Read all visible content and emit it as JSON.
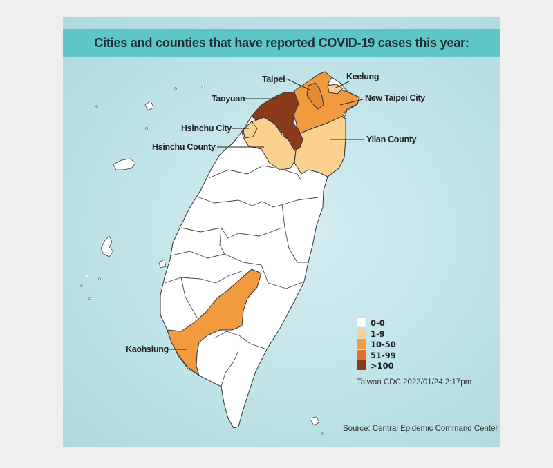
{
  "title": "Cities and counties that have reported COVID-19 cases this year:",
  "labels": {
    "taipei": "Taipei",
    "keelung": "Keelung",
    "new_taipei": "New Taipei City",
    "taoyuan": "Taoyuan",
    "hsinchu_city": "Hsinchu City",
    "hsinchu_county": "Hsinchu County",
    "yilan": "Yilan County",
    "kaohsiung": "Kaohsiung"
  },
  "legend": [
    {
      "label": "0-0",
      "color": "#ffffff"
    },
    {
      "label": "1-9",
      "color": "#fcd08e"
    },
    {
      "label": "10-50",
      "color": "#f19a3e"
    },
    {
      "label": "51-99",
      "color": "#e0722e"
    },
    {
      "label": ">100",
      "color": "#8b3a1c"
    }
  ],
  "timestamp": "Taiwan CDC 2022/01/24  2:17pm",
  "source": "Source: Central Epidemic Command Center",
  "region_categories": {
    "taoyuan": ">100",
    "new_taipei": "10-50",
    "taipei": "10-50",
    "keelung": "1-9",
    "hsinchu_city": "1-9",
    "hsinchu_county": "1-9",
    "yilan": "1-9",
    "kaohsiung": "10-50"
  }
}
